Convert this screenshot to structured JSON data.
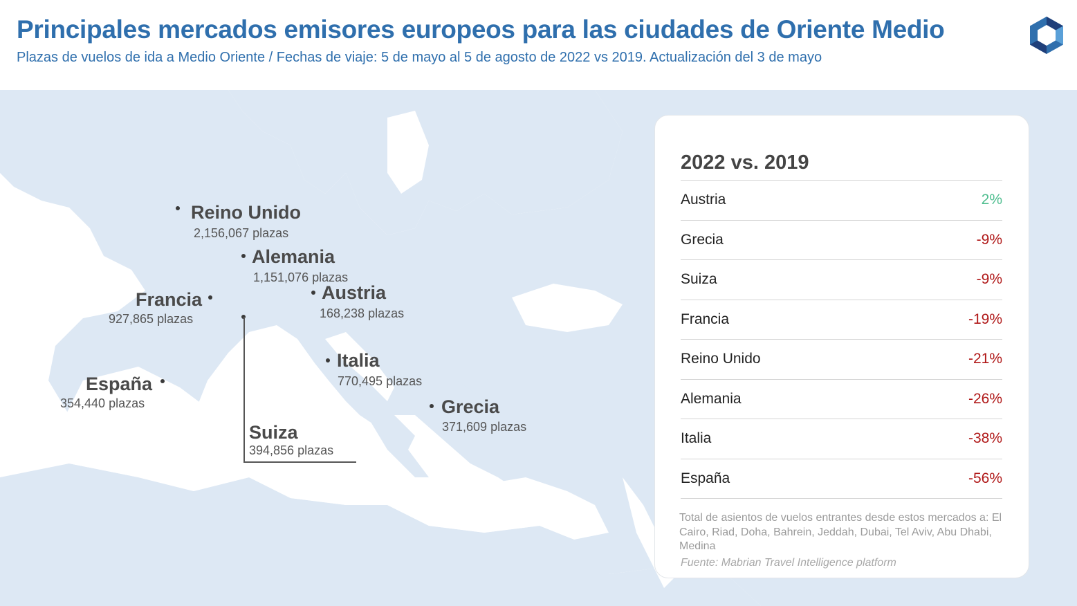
{
  "header": {
    "title": "Principales mercados emisores europeos para las ciudades de Oriente Medio",
    "subtitle": "Plazas de vuelos de ida a Medio Oriente / Fechas de viaje: 5 de mayo al 5 de agosto de 2022 vs 2019. Actualización del 3 de mayo"
  },
  "logo": {
    "icon": "hexagon-logo-icon",
    "colors": [
      "#2f6fad",
      "#1f3f7a",
      "#5aa0d8"
    ]
  },
  "map": {
    "land_color": "#dde8f4",
    "markets": [
      {
        "id": "reino-unido",
        "name": "Reino Unido",
        "seats": "2,156,067 plazas"
      },
      {
        "id": "alemania",
        "name": "Alemania",
        "seats": "1,151,076 plazas"
      },
      {
        "id": "francia",
        "name": "Francia",
        "seats": "927,865 plazas"
      },
      {
        "id": "austria",
        "name": "Austria",
        "seats": "168,238 plazas"
      },
      {
        "id": "italia",
        "name": "Italia",
        "seats": "770,495 plazas"
      },
      {
        "id": "espana",
        "name": "España",
        "seats": "354,440 plazas"
      },
      {
        "id": "grecia",
        "name": "Grecia",
        "seats": "371,609 plazas"
      },
      {
        "id": "suiza",
        "name": "Suiza",
        "seats": "394,856 plazas"
      }
    ]
  },
  "panel": {
    "title": "2022 vs. 2019",
    "rows": [
      {
        "name": "Austria",
        "change": "2%",
        "color": "#4dbd8e"
      },
      {
        "name": "Grecia",
        "change": "-9%",
        "color": "#b01818"
      },
      {
        "name": "Suiza",
        "change": "-9%",
        "color": "#b01818"
      },
      {
        "name": "Francia",
        "change": "-19%",
        "color": "#b01818"
      },
      {
        "name": "Reino Unido",
        "change": "-21%",
        "color": "#b01818"
      },
      {
        "name": "Alemania",
        "change": "-26%",
        "color": "#b01818"
      },
      {
        "name": "Italia",
        "change": "-38%",
        "color": "#b01818"
      },
      {
        "name": "España",
        "change": "-56%",
        "color": "#b01818"
      }
    ],
    "note": "Total de asientos de vuelos entrantes desde estos mercados a: El Cairo, Riad, Doha, Bahrein, Jeddah, Dubai, Tel Aviv, Abu Dhabi, Medina",
    "source": "Fuente: Mabrian Travel Intelligence platform"
  }
}
